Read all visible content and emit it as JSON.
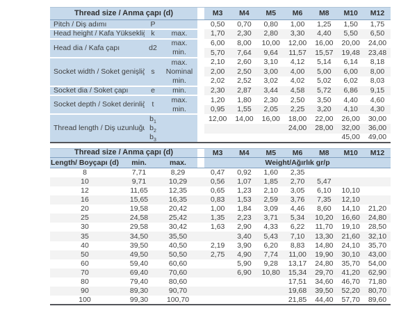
{
  "colors": {
    "header_blue": "#c6d9eb",
    "header_line_blue": "#7f9fbf",
    "stripe_gray": "#f3f3f3",
    "table_bottom_line": "#53555a",
    "text": "#3d3d3d"
  },
  "spec_table": {
    "title": "Thread size / Anma çapı (d)",
    "sizes": [
      "M3",
      "M4",
      "M5",
      "M6",
      "M8",
      "M10",
      "M12"
    ],
    "groups": [
      {
        "label": "Pitch / Diş adımı",
        "symbol": "P",
        "rows": [
          {
            "qual": "",
            "values": [
              "0,50",
              "0,70",
              "0,80",
              "1,00",
              "1,25",
              "1,50",
              "1,75"
            ]
          }
        ]
      },
      {
        "label": "Head height / Kafa Yüksekliği",
        "symbol": "k",
        "rows": [
          {
            "qual": "max.",
            "values": [
              "1,70",
              "2,30",
              "2,80",
              "3,30",
              "4,40",
              "5,50",
              "6,50"
            ]
          }
        ]
      },
      {
        "label": "Head dia / Kafa çapı",
        "symbol": "d2",
        "rows": [
          {
            "qual": "max.",
            "values": [
              "6,00",
              "8,00",
              "10,00",
              "12,00",
              "16,00",
              "20,00",
              "24,00"
            ]
          },
          {
            "qual": "min.",
            "values": [
              "5,70",
              "7,64",
              "9,64",
              "11,57",
              "15,57",
              "19,48",
              "23,48"
            ]
          }
        ]
      },
      {
        "label": "Socket width / Soket genişliği",
        "symbol": "s",
        "rows": [
          {
            "qual": "max.",
            "values": [
              "2,10",
              "2,60",
              "3,10",
              "4,12",
              "5,14",
              "6,14",
              "8,18"
            ]
          },
          {
            "qual": "Nominal",
            "values": [
              "2,00",
              "2,50",
              "3,00",
              "4,00",
              "5,00",
              "6,00",
              "8,00"
            ]
          },
          {
            "qual": "min.",
            "values": [
              "2,02",
              "2,52",
              "3,02",
              "4,02",
              "5,02",
              "6,02",
              "8,03"
            ]
          }
        ]
      },
      {
        "label": "Socket dia / Soket çapı",
        "symbol": "e",
        "rows": [
          {
            "qual": "min.",
            "values": [
              "2,30",
              "2,87",
              "3,44",
              "4,58",
              "5,72",
              "6,86",
              "9,15"
            ]
          }
        ]
      },
      {
        "label": "Socket depth / Soket derinliği",
        "symbol": "t",
        "rows": [
          {
            "qual": "max.",
            "values": [
              "1,20",
              "1,80",
              "2,30",
              "2,50",
              "3,50",
              "4,40",
              "4,60"
            ]
          },
          {
            "qual": "min.",
            "values": [
              "0,95",
              "1,55",
              "2,05",
              "2,25",
              "3,20",
              "4,10",
              "4,30"
            ]
          }
        ]
      },
      {
        "label": "Thread length / Diş uzunluğu",
        "rows": [
          {
            "symbol_base": "b",
            "symbol_sub": "1",
            "qual": "",
            "values": [
              "12,00",
              "14,00",
              "16,00",
              "18,00",
              "22,00",
              "26,00",
              "30,00"
            ]
          },
          {
            "symbol_base": "b",
            "symbol_sub": "2",
            "qual": "",
            "values": [
              "",
              "",
              "",
              "24,00",
              "28,00",
              "32,00",
              "36,00"
            ]
          },
          {
            "symbol_base": "b",
            "symbol_sub": "3",
            "qual": "",
            "values": [
              "",
              "",
              "",
              "",
              "",
              "45,00",
              "49,00"
            ]
          }
        ]
      }
    ]
  },
  "weight_table": {
    "title": "Thread size / Anma çapı (d)",
    "sizes": [
      "M3",
      "M4",
      "M5",
      "M6",
      "M8",
      "M10",
      "M12"
    ],
    "length_header": "Length/ Boyçapı (d)",
    "min_header": "min.",
    "max_header": "max.",
    "weight_header": "Weight/Ağırlık gr/p",
    "rows": [
      {
        "length": "8",
        "min": "7,71",
        "max": "8,29",
        "weights": [
          "0,47",
          "0,92",
          "1,60",
          "2,35",
          "",
          "",
          ""
        ]
      },
      {
        "length": "10",
        "min": "9,71",
        "max": "10,29",
        "weights": [
          "0,56",
          "1,07",
          "1,85",
          "2,70",
          "5,47",
          "",
          ""
        ]
      },
      {
        "length": "12",
        "min": "11,65",
        "max": "12,35",
        "weights": [
          "0,65",
          "1,23",
          "2,10",
          "3,05",
          "6,10",
          "10,10",
          ""
        ]
      },
      {
        "length": "16",
        "min": "15,65",
        "max": "16,35",
        "weights": [
          "0,83",
          "1,53",
          "2,59",
          "3,76",
          "7,35",
          "12,10",
          ""
        ]
      },
      {
        "length": "20",
        "min": "19,58",
        "max": "20,42",
        "weights": [
          "1,00",
          "1,84",
          "3,09",
          "4,46",
          "8,60",
          "14,10",
          "21,20"
        ]
      },
      {
        "length": "25",
        "min": "24,58",
        "max": "25,42",
        "weights": [
          "1,35",
          "2,23",
          "3,71",
          "5,34",
          "10,20",
          "16,60",
          "24,80"
        ]
      },
      {
        "length": "30",
        "min": "29,58",
        "max": "30,42",
        "weights": [
          "1,63",
          "2,90",
          "4,33",
          "6,22",
          "11,70",
          "19,10",
          "28,50"
        ]
      },
      {
        "length": "35",
        "min": "34,50",
        "max": "35,50",
        "weights": [
          "",
          "3,40",
          "5,43",
          "7,10",
          "13,30",
          "21,60",
          "32,10"
        ]
      },
      {
        "length": "40",
        "min": "39,50",
        "max": "40,50",
        "weights": [
          "2,19",
          "3,90",
          "6,20",
          "8,83",
          "14,80",
          "24,10",
          "35,70"
        ]
      },
      {
        "length": "50",
        "min": "49,50",
        "max": "50,50",
        "weights": [
          "2,75",
          "4,90",
          "7,74",
          "11,00",
          "19,90",
          "30,10",
          "43,00"
        ]
      },
      {
        "length": "60",
        "min": "59,40",
        "max": "60,60",
        "weights": [
          "",
          "5,90",
          "9,28",
          "13,17",
          "24,80",
          "35,70",
          "54,00"
        ]
      },
      {
        "length": "70",
        "min": "69,40",
        "max": "70,60",
        "weights": [
          "",
          "6,90",
          "10,80",
          "15,34",
          "29,70",
          "41,20",
          "62,90"
        ]
      },
      {
        "length": "80",
        "min": "79,40",
        "max": "80,60",
        "weights": [
          "",
          "",
          "",
          "17,51",
          "34,60",
          "46,70",
          "71,80"
        ]
      },
      {
        "length": "90",
        "min": "89,30",
        "max": "90,70",
        "weights": [
          "",
          "",
          "",
          "19,68",
          "39,50",
          "52,20",
          "80,70"
        ]
      },
      {
        "length": "100",
        "min": "99,30",
        "max": "100,70",
        "weights": [
          "",
          "",
          "",
          "21,85",
          "44,40",
          "57,70",
          "89,60"
        ]
      }
    ]
  }
}
